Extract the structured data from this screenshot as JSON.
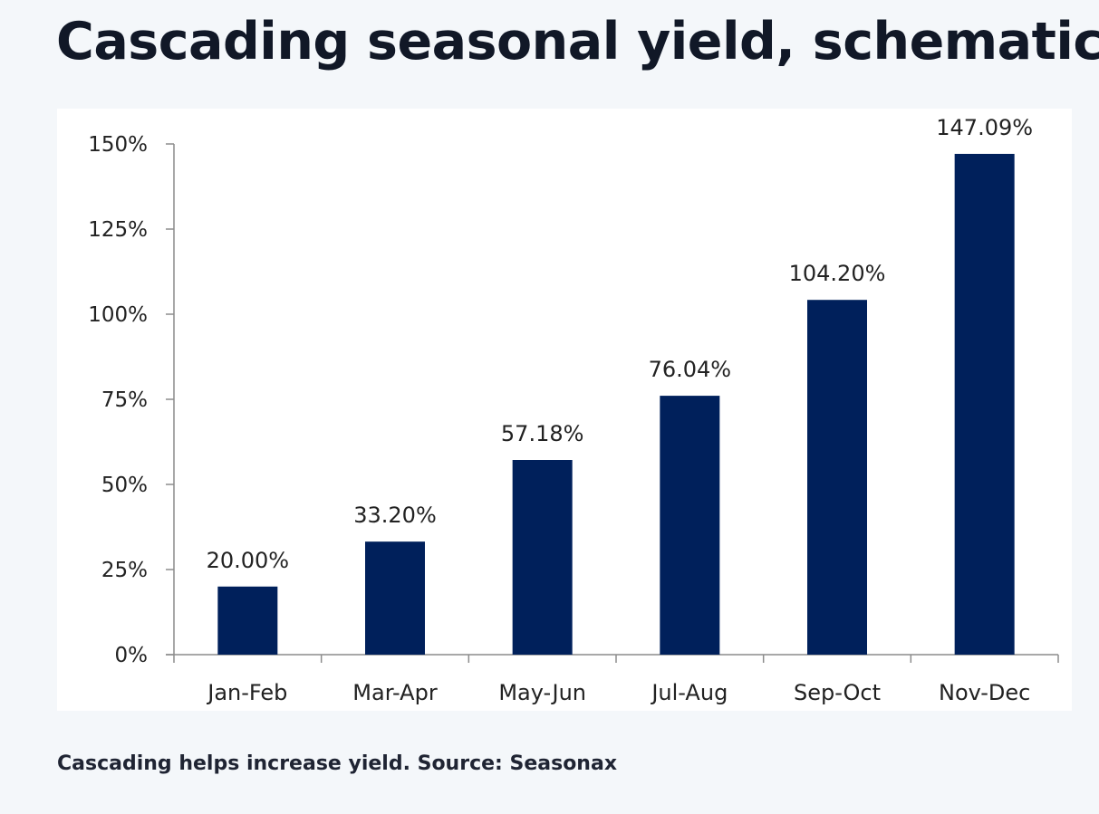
{
  "page": {
    "title": "Cascading seasonal yield, schematic",
    "caption": "Cascading helps increase yield. Source: Seasonax"
  },
  "colors": {
    "background": "#f4f7fa",
    "bar": "#00205b",
    "axis": "#8c8c8c"
  },
  "chart_data": {
    "type": "bar",
    "title": "Cascading seasonal yield, schematic",
    "xlabel": "",
    "ylabel": "",
    "categories": [
      "Jan-Feb",
      "Mar-Apr",
      "May-Jun",
      "Jul-Aug",
      "Sep-Oct",
      "Nov-Dec"
    ],
    "values": [
      20.0,
      33.2,
      57.18,
      76.04,
      104.2,
      147.09
    ],
    "data_labels": [
      "20.00%",
      "33.20%",
      "57.18%",
      "76.04%",
      "104.20%",
      "147.09%"
    ],
    "ylim": [
      0,
      150
    ],
    "yticks": [
      0,
      25,
      50,
      75,
      100,
      125,
      150
    ],
    "ytick_labels": [
      "0%",
      "25%",
      "50%",
      "75%",
      "100%",
      "125%",
      "150%"
    ],
    "grid": false,
    "legend": "none"
  }
}
